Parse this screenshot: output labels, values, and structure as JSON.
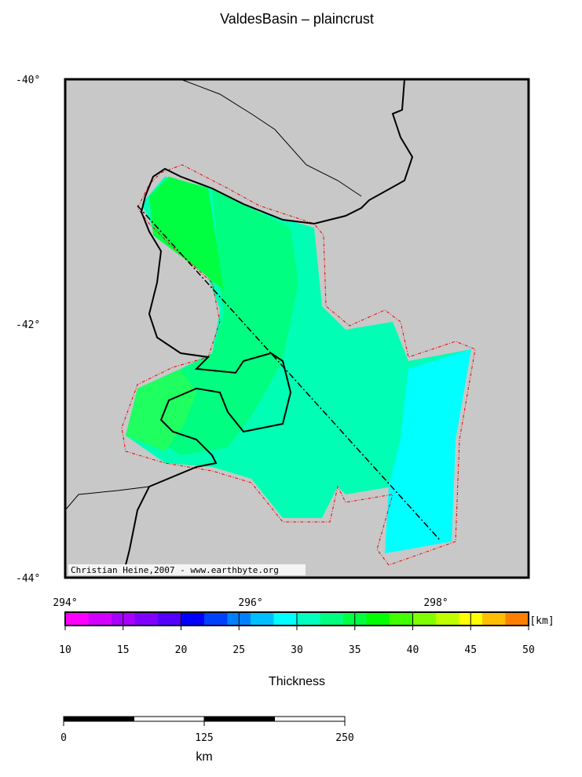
{
  "title": "ValdesBasin – plaincrust",
  "map": {
    "lat_labels": [
      "-40°",
      "-42°",
      "-44°"
    ],
    "lon_labels": [
      "294°",
      "296°",
      "298°"
    ],
    "credit": "Christian Heine,2007 - www.earthbyte.org"
  },
  "colorbar": {
    "unit": "[km]",
    "label": "Thickness",
    "ticks": [
      10,
      15,
      20,
      25,
      30,
      35,
      40,
      45,
      50
    ],
    "colors": [
      "#ff00ff",
      "#d400ff",
      "#aa00ff",
      "#8000ff",
      "#5500ff",
      "#0000ff",
      "#0040ff",
      "#0080ff",
      "#00bfff",
      "#00ffff",
      "#00ffbf",
      "#00ff80",
      "#00ff40",
      "#00ff00",
      "#40ff00",
      "#80ff00",
      "#bfff00",
      "#ffff00",
      "#ffbf00",
      "#ff8000"
    ]
  },
  "scalebar": {
    "ticks": [
      0,
      125,
      250
    ],
    "unit": "km"
  }
}
